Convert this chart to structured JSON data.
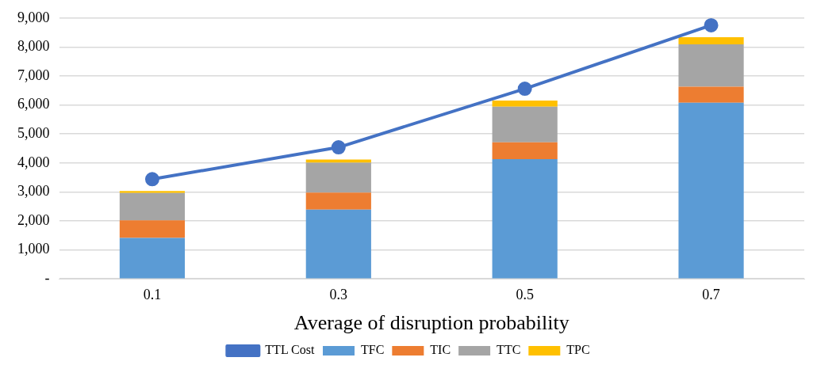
{
  "chart_data": {
    "type": "bar",
    "stacked": true,
    "xlabel": "Average of disruption probability",
    "categories": [
      "0.1",
      "0.3",
      "0.5",
      "0.7"
    ],
    "series": [
      {
        "name": "TFC",
        "color": "#5b9bd5",
        "values": [
          1410,
          2390,
          4130,
          6080
        ]
      },
      {
        "name": "TIC",
        "color": "#ed7d31",
        "values": [
          610,
          590,
          580,
          550
        ]
      },
      {
        "name": "TTC",
        "color": "#a5a5a5",
        "values": [
          940,
          1030,
          1230,
          1460
        ]
      },
      {
        "name": "TPC",
        "color": "#ffc000",
        "values": [
          70,
          110,
          210,
          250
        ]
      },
      {
        "name": "TTL Cost",
        "type": "line",
        "color": "#4472c4",
        "marker": "circle",
        "values": [
          3440,
          4540,
          6560,
          8750
        ]
      }
    ],
    "ylim": [
      0,
      9000
    ],
    "yticks": [
      {
        "value": 0,
        "label": "-"
      },
      {
        "value": 1000,
        "label": "1,000"
      },
      {
        "value": 2000,
        "label": "2,000"
      },
      {
        "value": 3000,
        "label": "3,000"
      },
      {
        "value": 4000,
        "label": "4,000"
      },
      {
        "value": 5000,
        "label": "5,000"
      },
      {
        "value": 6000,
        "label": "6,000"
      },
      {
        "value": 7000,
        "label": "7,000"
      },
      {
        "value": 8000,
        "label": "8,000"
      },
      {
        "value": 9000,
        "label": "9,000"
      }
    ],
    "grid": "y",
    "legend": "bottom"
  }
}
